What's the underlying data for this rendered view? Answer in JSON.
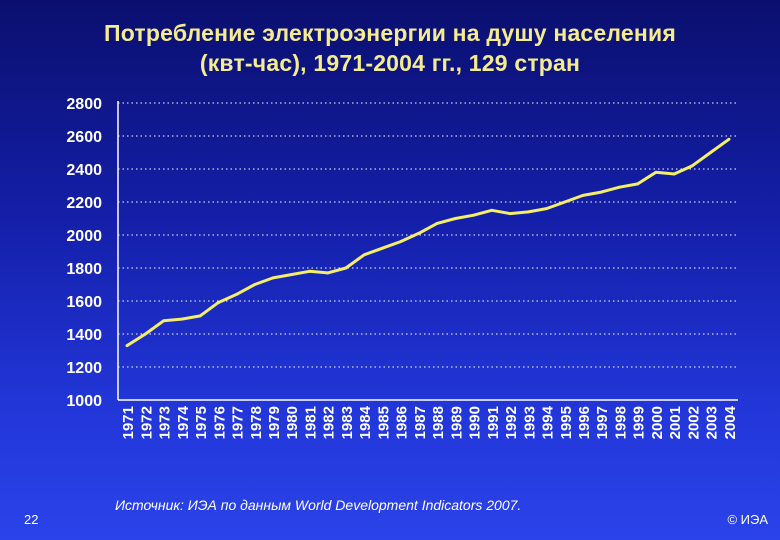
{
  "slide": {
    "title_line1": "Потребление электроэнергии на душу населения",
    "title_line2": "(квт-час), 1971-2004 гг., 129 стран",
    "source": "Источник: ИЭА по данным World Development Indicators 2007.",
    "slide_number": "22",
    "copyright": "© ИЭА"
  },
  "colors": {
    "line": "#f4ee6a",
    "grid": "#ffffff",
    "text": "#ffffff"
  },
  "chart_data": {
    "type": "line",
    "title": "Потребление электроэнергии на душу населения (квт-час), 1971-2004 гг., 129 стран",
    "xlabel": "",
    "ylabel": "",
    "ylim": [
      1000,
      2800
    ],
    "yticks": [
      1000,
      1200,
      1400,
      1600,
      1800,
      2000,
      2200,
      2400,
      2600,
      2800
    ],
    "grid": "horizontal-dotted",
    "categories": [
      "1971",
      "1972",
      "1973",
      "1974",
      "1975",
      "1976",
      "1977",
      "1978",
      "1979",
      "1980",
      "1981",
      "1982",
      "1983",
      "1984",
      "1985",
      "1986",
      "1987",
      "1988",
      "1989",
      "1990",
      "1991",
      "1992",
      "1993",
      "1994",
      "1995",
      "1996",
      "1997",
      "1998",
      "1999",
      "2000",
      "2001",
      "2002",
      "2003",
      "2004"
    ],
    "series": [
      {
        "values": [
          1330,
          1400,
          1480,
          1490,
          1510,
          1590,
          1640,
          1700,
          1740,
          1760,
          1780,
          1770,
          1800,
          1880,
          1920,
          1960,
          2010,
          2070,
          2100,
          2120,
          2150,
          2130,
          2140,
          2160,
          2200,
          2240,
          2260,
          2290,
          2310,
          2380,
          2370,
          2420,
          2500,
          2580
        ]
      }
    ]
  }
}
